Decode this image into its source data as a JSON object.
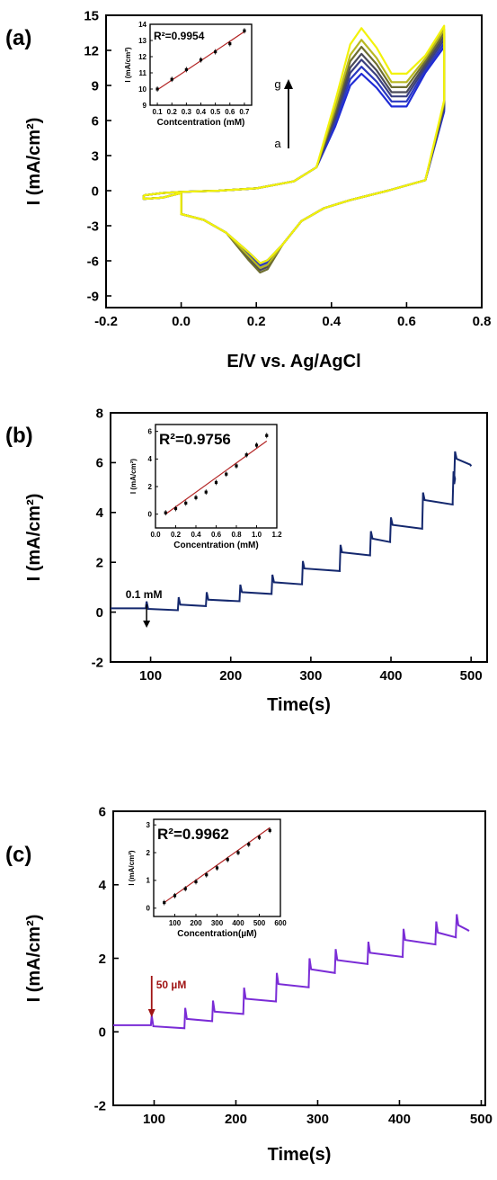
{
  "colors": {
    "axis": "#000000",
    "fit_line": "#b22222",
    "panel_a_low": "#1f2bd6",
    "panel_a_mid": "#4a4a5a",
    "panel_a_high": "#f2f20a",
    "panel_b_trace": "#14286e",
    "panel_c_trace": "#7a2cd6",
    "arrow_c": "#a01414"
  },
  "chart_data": [
    {
      "panel": "(a)",
      "type": "line",
      "xlabel": "E/V vs. Ag/AgCl",
      "ylabel": "I (mA/cm²)",
      "xlim": [
        -0.2,
        0.8
      ],
      "ylim": [
        -10,
        15
      ],
      "xticks": [
        -0.2,
        0.0,
        0.2,
        0.4,
        0.6,
        0.8
      ],
      "xtick_labels": [
        "-0.2",
        "0.0",
        "0.2",
        "0.4",
        "0.6",
        "0.8"
      ],
      "yticks": [
        -9,
        -6,
        -3,
        0,
        3,
        6,
        9,
        12,
        15
      ],
      "ytick_labels": [
        "-9",
        "-6",
        "-3",
        "0",
        "3",
        "6",
        "9",
        "12",
        "15"
      ],
      "annotations": {
        "top": "g",
        "bottom": "a"
      },
      "series_levels": [
        {
          "peak": 10.0,
          "cathodic": -6.2,
          "end": 12.3,
          "color": "#1f2bd6"
        },
        {
          "peak": 10.6,
          "cathodic": -6.4,
          "end": 12.6,
          "color": "#2a38c0"
        },
        {
          "peak": 11.2,
          "cathodic": -6.6,
          "end": 12.9,
          "color": "#3a3f80"
        },
        {
          "peak": 11.7,
          "cathodic": -6.8,
          "end": 13.2,
          "color": "#4a4a5a"
        },
        {
          "peak": 12.3,
          "cathodic": -7.0,
          "end": 13.5,
          "color": "#6e6e30"
        },
        {
          "peak": 12.9,
          "cathodic": -6.6,
          "end": 13.8,
          "color": "#b8b820"
        },
        {
          "peak": 13.9,
          "cathodic": -6.2,
          "end": 14.1,
          "color": "#f2f20a"
        }
      ],
      "inset": {
        "type": "scatter",
        "r2": "R²=0.9954",
        "xlabel": "Contcentration (mM)",
        "ylabel": "I (mA/cm²)",
        "xlim": [
          0.05,
          0.75
        ],
        "ylim": [
          9,
          14
        ],
        "xticks": [
          0.1,
          0.2,
          0.3,
          0.4,
          0.5,
          0.6,
          0.7
        ],
        "xtick_labels": [
          "0.1",
          "0.2",
          "0.3",
          "0.4",
          "0.5",
          "0.6",
          "0.7"
        ],
        "yticks": [
          9,
          10,
          11,
          12,
          13,
          14
        ],
        "ytick_labels": [
          "9",
          "10",
          "11",
          "12",
          "13",
          "14"
        ],
        "x": [
          0.1,
          0.2,
          0.3,
          0.4,
          0.5,
          0.6,
          0.7
        ],
        "y": [
          10.0,
          10.6,
          11.2,
          11.8,
          12.3,
          12.8,
          13.6
        ],
        "fit": [
          [
            0.1,
            9.95
          ],
          [
            0.7,
            13.55
          ]
        ]
      }
    },
    {
      "panel": "(b)",
      "type": "line",
      "xlabel": "Time(s)",
      "ylabel": "I (mA/cm²)",
      "xlim": [
        50,
        520
      ],
      "ylim": [
        -2,
        8
      ],
      "xticks": [
        100,
        200,
        300,
        400,
        500
      ],
      "xtick_labels": [
        "100",
        "200",
        "300",
        "400",
        "500"
      ],
      "yticks": [
        -2,
        0,
        2,
        4,
        6,
        8
      ],
      "ytick_labels": [
        "-2",
        "0",
        "2",
        "4",
        "6",
        "8"
      ],
      "annotation": {
        "text": "0.1 mM",
        "x": 95
      },
      "steps": [
        {
          "t": 95,
          "level": 0.08
        },
        {
          "t": 135,
          "level": 0.25
        },
        {
          "t": 170,
          "level": 0.45
        },
        {
          "t": 212,
          "level": 0.75
        },
        {
          "t": 252,
          "level": 1.15
        },
        {
          "t": 290,
          "level": 1.7
        },
        {
          "t": 337,
          "level": 2.35
        },
        {
          "t": 375,
          "level": 2.9
        },
        {
          "t": 400,
          "level": 3.45
        },
        {
          "t": 440,
          "level": 4.45
        },
        {
          "t": 478,
          "level": 5.3
        },
        {
          "t": 480,
          "level": 6.1
        }
      ],
      "start_level": 0.15,
      "inset": {
        "type": "scatter",
        "r2": "R²=0.9756",
        "xlabel": "Concentration (mM)",
        "ylabel": "I (mA/cm²)",
        "xlim": [
          0.0,
          1.2
        ],
        "ylim": [
          -1,
          6.5
        ],
        "xticks": [
          0.0,
          0.2,
          0.4,
          0.6,
          0.8,
          1.0,
          1.2
        ],
        "xtick_labels": [
          "0.0",
          "0.2",
          "0.4",
          "0.6",
          "0.8",
          "1.0",
          "1.2"
        ],
        "yticks": [
          0,
          2,
          4,
          6
        ],
        "ytick_labels": [
          "0",
          "2",
          "4",
          "6"
        ],
        "x": [
          0.1,
          0.2,
          0.3,
          0.4,
          0.5,
          0.6,
          0.7,
          0.8,
          0.9,
          1.0,
          1.1
        ],
        "y": [
          0.1,
          0.4,
          0.8,
          1.2,
          1.6,
          2.3,
          2.9,
          3.5,
          4.3,
          5.0,
          5.7
        ],
        "fit": [
          [
            0.1,
            0.0
          ],
          [
            1.1,
            5.3
          ]
        ]
      }
    },
    {
      "panel": "(c)",
      "type": "line",
      "xlabel": "Time(s)",
      "ylabel": "I (mA/cm²)",
      "xlim": [
        50,
        505
      ],
      "ylim": [
        -2,
        6
      ],
      "xticks": [
        100,
        200,
        300,
        400,
        500
      ],
      "xtick_labels": [
        "100",
        "200",
        "300",
        "400",
        "500"
      ],
      "yticks": [
        -2,
        0,
        2,
        4,
        6
      ],
      "ytick_labels": [
        "-2",
        "0",
        "2",
        "4",
        "6"
      ],
      "annotation": {
        "text": "50 µM",
        "x": 97
      },
      "steps": [
        {
          "t": 97,
          "level": 0.1
        },
        {
          "t": 138,
          "level": 0.3
        },
        {
          "t": 172,
          "level": 0.5
        },
        {
          "t": 210,
          "level": 0.85
        },
        {
          "t": 250,
          "level": 1.25
        },
        {
          "t": 290,
          "level": 1.65
        },
        {
          "t": 322,
          "level": 1.9
        },
        {
          "t": 362,
          "level": 2.1
        },
        {
          "t": 405,
          "level": 2.45
        },
        {
          "t": 445,
          "level": 2.65
        },
        {
          "t": 470,
          "level": 2.85
        }
      ],
      "start_level": 0.18,
      "inset": {
        "type": "scatter",
        "r2": "R²=0.9962",
        "xlabel": "Concentration(µM)",
        "ylabel": "I (mA/cm²)",
        "xlim": [
          0,
          600
        ],
        "ylim": [
          -0.3,
          3.2
        ],
        "xticks": [
          100,
          200,
          300,
          400,
          500,
          600
        ],
        "xtick_labels": [
          "100",
          "200",
          "300",
          "400",
          "500",
          "600"
        ],
        "yticks": [
          0,
          1,
          2,
          3
        ],
        "ytick_labels": [
          "0",
          "1",
          "2",
          "3"
        ],
        "x": [
          50,
          100,
          150,
          200,
          250,
          300,
          350,
          400,
          450,
          500,
          550
        ],
        "y": [
          0.2,
          0.45,
          0.7,
          0.95,
          1.2,
          1.45,
          1.75,
          2.0,
          2.3,
          2.55,
          2.8
        ],
        "fit": [
          [
            50,
            0.2
          ],
          [
            550,
            2.9
          ]
        ]
      }
    }
  ]
}
